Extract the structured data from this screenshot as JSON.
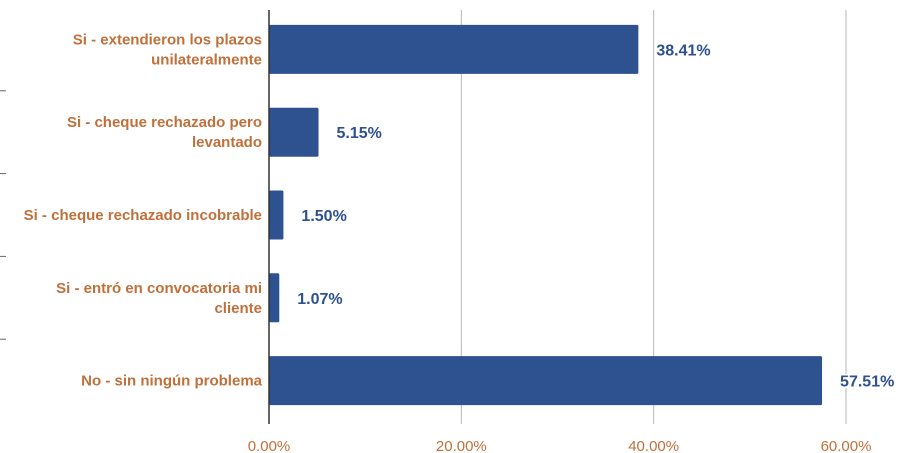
{
  "chart_data": {
    "type": "bar",
    "orientation": "horizontal",
    "categories": [
      [
        "Si - extendieron los plazos",
        "unilateralmente"
      ],
      [
        "Si - cheque rechazado pero",
        "levantado"
      ],
      [
        "Si - cheque rechazado incobrable"
      ],
      [
        "Si - entró en convocatoria mi",
        "cliente"
      ],
      [
        "No - sin ningún problema"
      ]
    ],
    "values": [
      38.41,
      5.15,
      1.5,
      1.07,
      57.51
    ],
    "value_labels": [
      "38.41%",
      "5.15%",
      "1.50%",
      "1.07%",
      "57.51%"
    ],
    "x_ticks": [
      0,
      20,
      40,
      60
    ],
    "x_tick_labels": [
      "0.00%",
      "20.00%",
      "40.00%",
      "60.00%"
    ],
    "xlim": [
      0,
      60
    ],
    "grid": "vertical",
    "title": "",
    "xlabel": "",
    "ylabel": "",
    "colors": {
      "bar": "#2e5190",
      "category_text": "#c0703a",
      "data_label": "#2e5190",
      "grid": "#b7b7b7",
      "axis": "#333333"
    }
  }
}
